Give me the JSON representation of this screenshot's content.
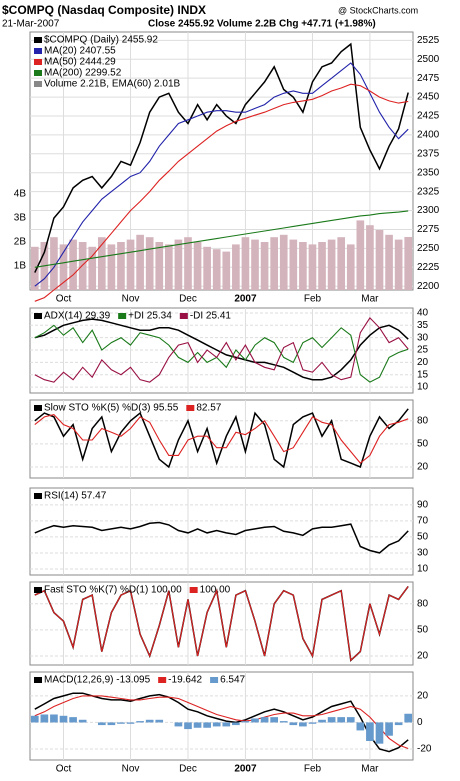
{
  "chart_data": [
    {
      "type": "line",
      "title": "$COMPQ (Nasdaq Composite) INDX",
      "date": "21-Mar-2007",
      "quote": "Close 2455.92 Volume 2.2B Chg +47.71 (+1.98%)",
      "credit": "@ StockCharts.com",
      "categories": [
        null,
        null,
        null,
        "Oct",
        null,
        null,
        null,
        null,
        null,
        null,
        "Nov",
        null,
        null,
        null,
        null,
        null,
        "Dec",
        null,
        null,
        null,
        null,
        null,
        "2007",
        null,
        null,
        null,
        null,
        null,
        null,
        "Feb",
        null,
        null,
        null,
        null,
        null,
        "Mar",
        null,
        null,
        null,
        null
      ],
      "ylim": [
        2195,
        2536
      ],
      "yticks": [
        2200,
        2225,
        2250,
        2275,
        2300,
        2325,
        2350,
        2375,
        2400,
        2425,
        2450,
        2475,
        2500,
        2525
      ],
      "grid": true,
      "legend": "top-left",
      "series": [
        {
          "name": "$COMPQ (Daily) 2455.92",
          "color": "#000000",
          "values": [
            2218,
            2245,
            2290,
            2305,
            2330,
            2340,
            2345,
            2330,
            2345,
            2365,
            2360,
            2390,
            2430,
            2450,
            2455,
            2430,
            2415,
            2440,
            2420,
            2440,
            2425,
            2415,
            2440,
            2455,
            2470,
            2490,
            2460,
            2450,
            2430,
            2470,
            2490,
            2495,
            2510,
            2520,
            2410,
            2380,
            2355,
            2385,
            2408,
            2455.92
          ]
        },
        {
          "name": "MA(20) 2407.55",
          "color": "#2222aa",
          "values": [
            2200,
            2210,
            2225,
            2245,
            2265,
            2285,
            2300,
            2315,
            2325,
            2335,
            2345,
            2350,
            2365,
            2385,
            2400,
            2415,
            2420,
            2425,
            2430,
            2432,
            2432,
            2430,
            2430,
            2435,
            2440,
            2450,
            2455,
            2458,
            2455,
            2455,
            2465,
            2475,
            2485,
            2495,
            2480,
            2455,
            2430,
            2410,
            2395,
            2407.55
          ]
        },
        {
          "name": "MA(50) 2444.29",
          "color": "#dd2222",
          "values": [
            2180,
            2185,
            2195,
            2205,
            2215,
            2228,
            2240,
            2255,
            2270,
            2285,
            2300,
            2312,
            2325,
            2340,
            2352,
            2365,
            2375,
            2385,
            2395,
            2405,
            2412,
            2418,
            2422,
            2426,
            2430,
            2435,
            2440,
            2443,
            2445,
            2447,
            2452,
            2458,
            2462,
            2467,
            2465,
            2458,
            2450,
            2445,
            2442,
            2444.29
          ]
        },
        {
          "name": "MA(200) 2299.52",
          "color": "#1a7a1a",
          "values": [
            2225,
            2227,
            2229,
            2231,
            2233,
            2235,
            2237,
            2239,
            2241,
            2243,
            2245,
            2247,
            2249,
            2251,
            2253,
            2255,
            2257,
            2259,
            2261,
            2263,
            2265,
            2267,
            2269,
            2271,
            2273,
            2275,
            2277,
            2279,
            2281,
            2283,
            2285,
            2287,
            2289,
            2291,
            2293,
            2294,
            2296,
            2297,
            2298,
            2299.52
          ]
        }
      ],
      "volume": {
        "name": "Volume 2.21B, EMA(60) 2.01B",
        "color": "#d4b4bc",
        "ylim": [
          0,
          10.75
        ],
        "yticks": [
          {
            "value": 1,
            "label": "1B"
          },
          {
            "value": 2,
            "label": "2B"
          },
          {
            "value": 3,
            "label": "3B"
          },
          {
            "value": 4,
            "label": "4B"
          }
        ],
        "values": [
          1.8,
          2.0,
          2.2,
          1.9,
          2.1,
          2.0,
          1.8,
          2.2,
          1.9,
          2.0,
          2.1,
          2.3,
          2.2,
          2.0,
          1.9,
          2.1,
          2.2,
          2.0,
          1.8,
          1.7,
          1.6,
          1.9,
          2.2,
          2.1,
          2.0,
          2.2,
          2.3,
          2.1,
          2.0,
          1.9,
          2.0,
          2.1,
          2.2,
          1.9,
          2.9,
          2.7,
          2.5,
          2.3,
          2.1,
          2.21
        ]
      }
    },
    {
      "type": "line",
      "ylim": [
        7.6,
        42
      ],
      "yticks": [
        10,
        15,
        20,
        25,
        30,
        35,
        40
      ],
      "grid": true,
      "legend": "top-left",
      "series": [
        {
          "name": "ADX(14) 29.39",
          "color": "#000000",
          "values": [
            30,
            31,
            33,
            35,
            36,
            37,
            37.5,
            37,
            36,
            35,
            34,
            33,
            33,
            34,
            34,
            33,
            31,
            29,
            27,
            25,
            23,
            22,
            21,
            20,
            20,
            19,
            18,
            16,
            14,
            13,
            13,
            14,
            17,
            21,
            27,
            31,
            34,
            35,
            33,
            29.39
          ]
        },
        {
          "name": "+DI 25.34",
          "color": "#1a7a1a",
          "values": [
            30,
            32,
            35,
            31,
            34,
            28,
            33,
            25,
            28,
            30,
            27,
            32,
            31,
            30,
            27,
            22,
            20,
            24,
            20,
            22,
            18,
            25,
            21,
            27,
            30,
            28,
            22,
            20,
            28,
            30,
            26,
            30,
            34,
            31,
            15,
            12,
            14,
            22,
            24,
            25.34
          ]
        },
        {
          "name": "-DI 25.41",
          "color": "#991144",
          "values": [
            15,
            13,
            12,
            16,
            13,
            18,
            14,
            21,
            17,
            15,
            18,
            13,
            12,
            15,
            22,
            27,
            28,
            20,
            25,
            22,
            28,
            21,
            27,
            20,
            18,
            17,
            26,
            28,
            17,
            16,
            20,
            15,
            13,
            14,
            32,
            38,
            34,
            28,
            30,
            25.41
          ]
        }
      ]
    },
    {
      "type": "line",
      "ylim": [
        5.7,
        107
      ],
      "yticks": [
        20,
        50,
        80
      ],
      "grid": true,
      "legend": "top-left",
      "series": [
        {
          "name": "Slow STO %K(5) %D(3) 95.55",
          "color": "#000000",
          "values": [
            80,
            90,
            85,
            60,
            75,
            30,
            70,
            85,
            40,
            65,
            80,
            90,
            60,
            30,
            20,
            55,
            80,
            40,
            70,
            25,
            60,
            85,
            40,
            90,
            75,
            30,
            20,
            75,
            85,
            90,
            60,
            80,
            30,
            25,
            20,
            60,
            85,
            70,
            80,
            95.55
          ]
        },
        {
          "name": "82.57",
          "color": "#dd2222",
          "values": [
            75,
            85,
            88,
            75,
            70,
            55,
            55,
            70,
            65,
            60,
            70,
            85,
            78,
            55,
            35,
            35,
            55,
            60,
            60,
            45,
            45,
            65,
            62,
            70,
            80,
            60,
            40,
            45,
            65,
            85,
            78,
            75,
            55,
            40,
            25,
            35,
            60,
            75,
            78,
            82.57
          ]
        }
      ]
    },
    {
      "type": "line",
      "ylim": [
        2.5,
        111
      ],
      "yticks": [
        10,
        30,
        50,
        70,
        90
      ],
      "grid": true,
      "legend": "top-left",
      "series": [
        {
          "name": "RSI(14) 57.47",
          "color": "#000000",
          "values": [
            55,
            60,
            64,
            62,
            64,
            63,
            62,
            58,
            60,
            62,
            60,
            63,
            67,
            68,
            65,
            58,
            55,
            60,
            55,
            58,
            55,
            53,
            58,
            60,
            62,
            63,
            57,
            55,
            52,
            60,
            62,
            62,
            64,
            66,
            38,
            33,
            30,
            40,
            45,
            57.47
          ]
        }
      ]
    },
    {
      "type": "line",
      "ylim": [
        9.6,
        105
      ],
      "yticks": [
        20,
        50,
        80
      ],
      "grid": true,
      "legend": "top-left",
      "series": [
        {
          "name": "Fast STO %K(7) %D(1) 100.00",
          "color": "#000000",
          "values": [
            90,
            95,
            70,
            60,
            30,
            85,
            90,
            25,
            70,
            90,
            95,
            45,
            20,
            55,
            95,
            30,
            85,
            20,
            70,
            95,
            30,
            90,
            95,
            60,
            20,
            80,
            95,
            90,
            40,
            20,
            85,
            90,
            95,
            15,
            25,
            80,
            45,
            90,
            85,
            100
          ]
        },
        {
          "name": "100.00",
          "color": "#dd2222",
          "values": [
            90,
            95,
            70,
            60,
            30,
            85,
            90,
            25,
            70,
            90,
            95,
            45,
            20,
            55,
            95,
            30,
            85,
            20,
            70,
            95,
            30,
            90,
            95,
            60,
            20,
            80,
            95,
            90,
            40,
            20,
            85,
            90,
            95,
            15,
            25,
            80,
            45,
            90,
            85,
            100
          ]
        }
      ]
    },
    {
      "type": "line",
      "ylim": [
        -28.3,
        38
      ],
      "yticks": [
        -20,
        0,
        20
      ],
      "grid": true,
      "legend": "top-left",
      "categories": [
        null,
        null,
        null,
        "Oct",
        null,
        null,
        null,
        null,
        null,
        null,
        "Nov",
        null,
        null,
        null,
        null,
        null,
        "Dec",
        null,
        null,
        null,
        null,
        null,
        "2007",
        null,
        null,
        null,
        null,
        null,
        null,
        "Feb",
        null,
        null,
        null,
        null,
        null,
        "Mar",
        null,
        null,
        null,
        null
      ],
      "series": [
        {
          "name": "MACD(12,26,9) -13.095",
          "color": "#000000",
          "values": [
            10,
            14,
            18,
            20,
            22,
            22,
            20,
            18,
            17,
            17,
            16,
            18,
            20,
            21,
            19,
            15,
            10,
            8,
            5,
            3,
            1,
            0,
            2,
            5,
            8,
            10,
            8,
            5,
            2,
            4,
            8,
            12,
            14,
            16,
            4,
            -10,
            -20,
            -22,
            -19,
            -13.095
          ]
        },
        {
          "name": "-19.642",
          "color": "#dd2222",
          "values": [
            5,
            8,
            12,
            15,
            18,
            20,
            20,
            20,
            19,
            18,
            17,
            17,
            18,
            19,
            19,
            18,
            15,
            12,
            9,
            6,
            4,
            2,
            1,
            2,
            4,
            6,
            7,
            7,
            5,
            5,
            6,
            8,
            10,
            12,
            10,
            4,
            -4,
            -12,
            -17,
            -19.642
          ]
        },
        {
          "name": "6.547",
          "color": "#6699cc",
          "type": "bar",
          "values": [
            5,
            6,
            6,
            5,
            4,
            2,
            0,
            -2,
            -2,
            -1,
            -1,
            1,
            2,
            2,
            0,
            -3,
            -5,
            -4,
            -4,
            -3,
            -3,
            -2,
            1,
            3,
            4,
            4,
            1,
            -2,
            -3,
            -1,
            2,
            4,
            4,
            4,
            -6,
            -14,
            -16,
            -10,
            -2,
            6.547
          ]
        }
      ]
    }
  ]
}
